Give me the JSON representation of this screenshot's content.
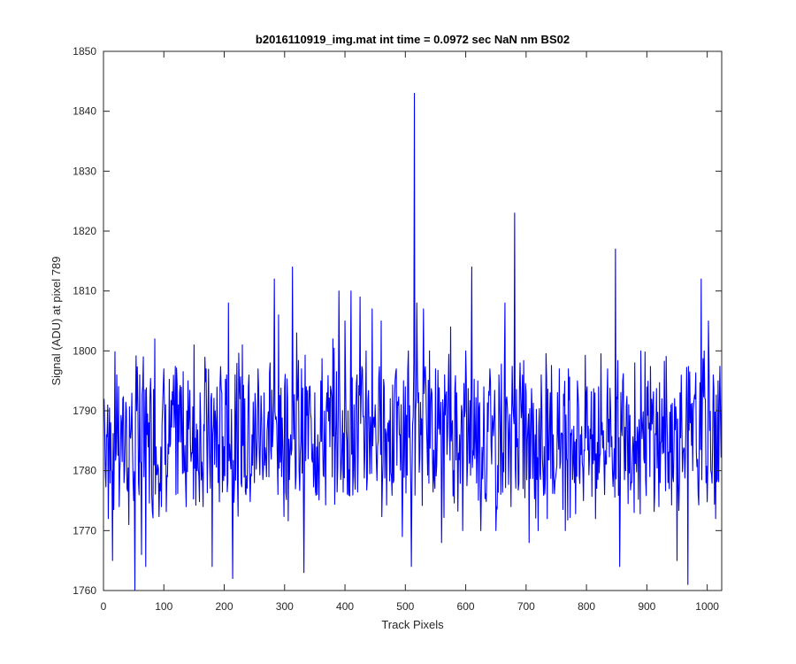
{
  "chart_data": {
    "type": "line",
    "title": "b2016110919_img.mat int time = 0.0972 sec  NaN nm BS02",
    "xlabel": "Track Pixels",
    "ylabel": "Signal (ADU) at pixel 789",
    "xlim": [
      0,
      1024
    ],
    "ylim": [
      1760,
      1850
    ],
    "xticks": [
      0,
      100,
      200,
      300,
      400,
      500,
      600,
      700,
      800,
      900,
      1000
    ],
    "yticks": [
      1760,
      1770,
      1780,
      1790,
      1800,
      1810,
      1820,
      1830,
      1840,
      1850
    ],
    "grid": false,
    "legend": "none",
    "line_color": "#0000ff",
    "series": [
      {
        "values_anchor_pixels": [
          1,
          3,
          5,
          8,
          12,
          15,
          18,
          22,
          26,
          30,
          34,
          38,
          42,
          46,
          50,
          52,
          55,
          58,
          60,
          63,
          66,
          70,
          75,
          80,
          85,
          90,
          96,
          100,
          106,
          110,
          115,
          120,
          126,
          130,
          136,
          140,
          146,
          150,
          155,
          160,
          165,
          170,
          175,
          180,
          185,
          190,
          196,
          200,
          204,
          207,
          210,
          214,
          218,
          222,
          226,
          230,
          236,
          240,
          246,
          250,
          256,
          260,
          266,
          270,
          276,
          280,
          283,
          286,
          290,
          295,
          300,
          305,
          310,
          313,
          317,
          320,
          324,
          328,
          332,
          336,
          340,
          345,
          350,
          355,
          360,
          365,
          370,
          375,
          380,
          385,
          390,
          395,
          400,
          405,
          410,
          415,
          420,
          425,
          430,
          435,
          440,
          445,
          450,
          455,
          460,
          465,
          470,
          475,
          480,
          485,
          490,
          495,
          500,
          505,
          510,
          513,
          515,
          517,
          519,
          522,
          526,
          530,
          535,
          540,
          545,
          550,
          555,
          560,
          565,
          570,
          575,
          580,
          585,
          590,
          595,
          600,
          605,
          610,
          615,
          620,
          625,
          630,
          635,
          640,
          645,
          650,
          655,
          660,
          665,
          670,
          675,
          678,
          681,
          685,
          690,
          695,
          700,
          705,
          710,
          715,
          720,
          725,
          730,
          735,
          740,
          745,
          750,
          755,
          760,
          765,
          770,
          775,
          780,
          785,
          790,
          795,
          800,
          805,
          810,
          815,
          820,
          825,
          830,
          835,
          840,
          845,
          848,
          851,
          855,
          860,
          865,
          870,
          875,
          880,
          885,
          890,
          895,
          900,
          905,
          910,
          915,
          920,
          925,
          930,
          935,
          940,
          945,
          950,
          955,
          960,
          965,
          968,
          972,
          976,
          980,
          985,
          990,
          995,
          998,
          1002,
          1006,
          1010,
          1014,
          1018,
          1022,
          1024
        ],
        "values_anchor": [
          1792,
          1780,
          1786,
          1772,
          1788,
          1765,
          1784,
          1796,
          1774,
          1788,
          1778,
          1790,
          1771,
          1787,
          1775,
          1760,
          1790,
          1778,
          1796,
          1766,
          1799,
          1764,
          1788,
          1776,
          1802,
          1781,
          1774,
          1797,
          1779,
          1784,
          1791,
          1776,
          1793,
          1786,
          1778,
          1795,
          1783,
          1801,
          1780,
          1793,
          1774,
          1797,
          1786,
          1764,
          1790,
          1778,
          1793,
          1784,
          1796,
          1808,
          1782,
          1762,
          1796,
          1778,
          1792,
          1801,
          1776,
          1794,
          1786,
          1778,
          1797,
          1786,
          1793,
          1779,
          1798,
          1784,
          1812,
          1789,
          1806,
          1779,
          1794,
          1792,
          1786,
          1814,
          1786,
          1803,
          1780,
          1797,
          1763,
          1794,
          1789,
          1782,
          1793,
          1786,
          1795,
          1779,
          1793,
          1784,
          1802,
          1788,
          1810,
          1784,
          1805,
          1790,
          1810,
          1791,
          1796,
          1809,
          1789,
          1800,
          1786,
          1807,
          1791,
          1785,
          1805,
          1794,
          1786,
          1792,
          1778,
          1797,
          1786,
          1769,
          1794,
          1800,
          1764,
          1789,
          1843,
          1790,
          1808,
          1793,
          1786,
          1807,
          1788,
          1800,
          1782,
          1797,
          1787,
          1768,
          1796,
          1786,
          1804,
          1780,
          1793,
          1786,
          1770,
          1800,
          1787,
          1814,
          1782,
          1795,
          1770,
          1794,
          1780,
          1797,
          1788,
          1770,
          1796,
          1784,
          1808,
          1788,
          1774,
          1791,
          1823,
          1784,
          1798,
          1777,
          1793,
          1768,
          1790,
          1786,
          1770,
          1796,
          1784,
          1772,
          1793,
          1786,
          1780,
          1797,
          1786,
          1770,
          1797,
          1786,
          1778,
          1795,
          1786,
          1775,
          1793,
          1782,
          1786,
          1772,
          1794,
          1786,
          1776,
          1797,
          1790,
          1780,
          1817,
          1792,
          1764,
          1795,
          1780,
          1791,
          1778,
          1798,
          1786,
          1800,
          1782,
          1794,
          1779,
          1791,
          1786,
          1774,
          1792,
          1786,
          1778,
          1791,
          1784,
          1765,
          1793,
          1783,
          1789,
          1761,
          1788,
          1780,
          1792,
          1776,
          1812,
          1800,
          1778,
          1805,
          1780,
          1796,
          1772,
          1795,
          1789,
          1794
        ]
      }
    ]
  }
}
